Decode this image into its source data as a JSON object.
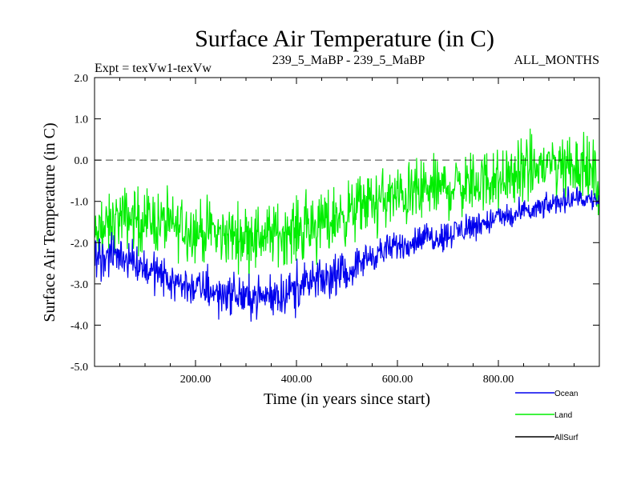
{
  "chart_data": {
    "type": "line",
    "title": "Surface Air Temperature (in C)",
    "subtitle_left": "Expt = texVw1-texVw",
    "subtitle_center": "239_5_MaBP - 239_5_MaBP",
    "subtitle_right": "ALL_MONTHS",
    "xlabel": "Time (in years since start)",
    "ylabel": "Surface Air Temperature (in C)",
    "xlim": [
      0,
      1000
    ],
    "ylim": [
      -5.0,
      2.0
    ],
    "x_ticks": [
      200,
      400,
      600,
      800
    ],
    "x_tick_labels": [
      "200.00",
      "400.00",
      "600.00",
      "800.00"
    ],
    "y_ticks": [
      2.0,
      1.0,
      0.0,
      -1.0,
      -2.0,
      -3.0,
      -4.0,
      -5.0
    ],
    "y_tick_labels": [
      "2.0",
      "1.0",
      "0.0",
      "-1.0",
      "-2.0",
      "-3.0",
      "-4.0",
      "-5.0"
    ],
    "reference_line": {
      "y": 0.0,
      "style": "dashed"
    },
    "series": [
      {
        "name": "Land",
        "color": "#00ee00",
        "x": [
          0,
          50,
          100,
          150,
          200,
          250,
          300,
          350,
          400,
          450,
          500,
          550,
          600,
          650,
          700,
          750,
          800,
          850,
          900,
          950,
          1000
        ],
        "mean": [
          -1.9,
          -1.4,
          -1.4,
          -1.6,
          -1.7,
          -1.8,
          -1.85,
          -1.8,
          -1.7,
          -1.5,
          -1.3,
          -1.0,
          -0.9,
          -0.75,
          -0.65,
          -0.55,
          -0.45,
          -0.3,
          -0.1,
          -0.05,
          -0.5
        ],
        "spread": [
          0.9,
          0.95,
          0.95,
          0.95,
          0.95,
          0.95,
          0.95,
          0.95,
          0.95,
          0.95,
          0.95,
          0.95,
          0.95,
          0.95,
          0.95,
          0.95,
          0.95,
          1.0,
          1.05,
          1.05,
          1.0
        ]
      },
      {
        "name": "Ocean",
        "color": "#0000ee",
        "x": [
          0,
          50,
          100,
          150,
          200,
          250,
          300,
          350,
          400,
          450,
          500,
          550,
          600,
          650,
          700,
          750,
          800,
          850,
          900,
          950,
          1000
        ],
        "mean": [
          -2.4,
          -2.3,
          -2.6,
          -2.9,
          -3.1,
          -3.2,
          -3.3,
          -3.3,
          -3.1,
          -2.9,
          -2.7,
          -2.3,
          -2.1,
          -1.9,
          -1.8,
          -1.6,
          -1.4,
          -1.3,
          -1.1,
          -0.9,
          -1.0
        ],
        "spread": [
          0.65,
          0.6,
          0.6,
          0.6,
          0.6,
          0.6,
          0.6,
          0.6,
          0.6,
          0.6,
          0.55,
          0.5,
          0.45,
          0.45,
          0.45,
          0.45,
          0.4,
          0.4,
          0.35,
          0.35,
          0.35
        ]
      }
    ],
    "legend": {
      "position": "bottom-right",
      "entries": [
        {
          "label": "Ocean",
          "color": "#0000ee"
        },
        {
          "label": "Land",
          "color": "#00ee00"
        },
        {
          "label": "AllSurf",
          "color": "#000000"
        }
      ]
    }
  }
}
